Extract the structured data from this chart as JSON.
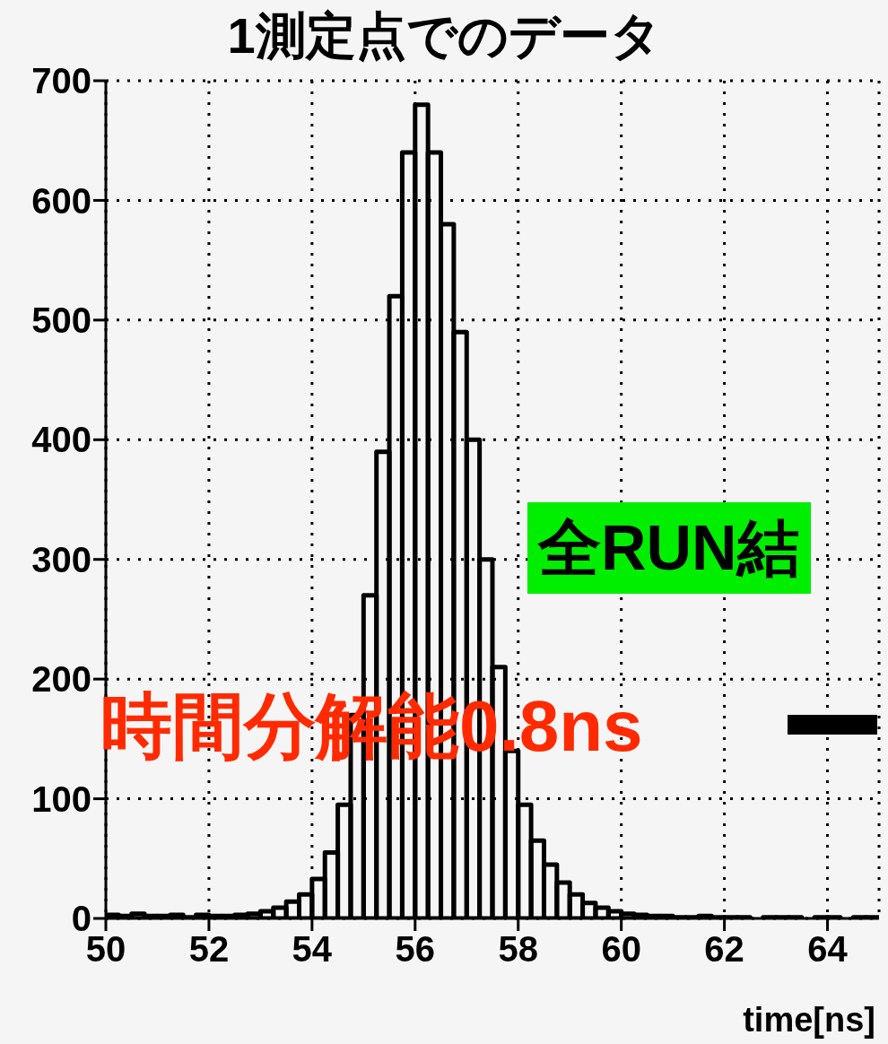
{
  "chart_data": {
    "type": "histogram",
    "title": "1測定点でのデータ",
    "xlabel": "time[ns]",
    "bins": [
      50,
      50.25,
      50.5,
      50.75,
      51,
      51.25,
      51.5,
      51.75,
      52,
      52.25,
      52.5,
      52.75,
      53,
      53.25,
      53.5,
      53.75,
      54,
      54.25,
      54.5,
      54.75,
      55,
      55.25,
      55.5,
      55.75,
      56,
      56.25,
      56.5,
      56.75,
      57,
      57.25,
      57.5,
      57.75,
      58,
      58.25,
      58.5,
      58.75,
      59,
      59.25,
      59.5,
      59.75,
      60,
      60.25,
      60.5,
      60.75,
      61,
      61.25,
      61.5,
      61.75,
      62,
      62.25,
      62.5,
      62.75,
      63,
      63.25,
      63.5,
      63.75,
      64,
      64.25,
      64.5,
      64.75,
      65
    ],
    "values": [
      3,
      2,
      4,
      2,
      2,
      3,
      1,
      3,
      2,
      2,
      3,
      4,
      6,
      9,
      14,
      20,
      33,
      55,
      95,
      170,
      270,
      390,
      520,
      640,
      680,
      640,
      580,
      490,
      400,
      300,
      210,
      140,
      95,
      65,
      45,
      30,
      20,
      13,
      9,
      6,
      4,
      3,
      2,
      2,
      1,
      1,
      2,
      1,
      1,
      1,
      0,
      1,
      1,
      1,
      0,
      1,
      1,
      0,
      1,
      1
    ],
    "color": "#000000",
    "xlim": [
      50,
      65
    ],
    "xticks": [
      50,
      52,
      54,
      56,
      58,
      60,
      62,
      64
    ],
    "ylim": [
      0,
      700
    ],
    "yticks": [
      0,
      100,
      200,
      300,
      400,
      500,
      600,
      700
    ],
    "grid": true,
    "annotations": [
      "全RUN結",
      "時間分解能0.8ns"
    ]
  }
}
